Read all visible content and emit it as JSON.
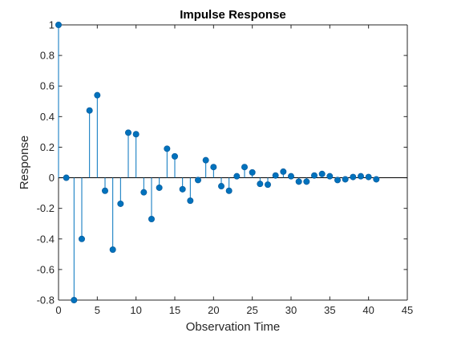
{
  "chart_data": {
    "type": "stem",
    "title": "Impulse Response",
    "xlabel": "Observation Time",
    "ylabel": "Response",
    "xlim": [
      0,
      45
    ],
    "ylim": [
      -0.8,
      1
    ],
    "xticks": [
      "0",
      "5",
      "10",
      "15",
      "20",
      "25",
      "30",
      "35",
      "40",
      "45"
    ],
    "yticks": [
      "-0.8",
      "-0.6",
      "-0.4",
      "-0.2",
      "0",
      "0.2",
      "0.4",
      "0.6",
      "0.8",
      "1"
    ],
    "grid": false,
    "baseline": 0,
    "x": [
      0,
      1,
      2,
      3,
      4,
      5,
      6,
      7,
      8,
      9,
      10,
      11,
      12,
      13,
      14,
      15,
      16,
      17,
      18,
      19,
      20,
      21,
      22,
      23,
      24,
      25,
      26,
      27,
      28,
      29,
      30,
      31,
      32,
      33,
      34,
      35,
      36,
      37,
      38,
      39,
      40,
      41
    ],
    "values": [
      1,
      0,
      -0.8,
      -0.4,
      0.44,
      0.54,
      -0.085,
      -0.47,
      -0.17,
      0.295,
      0.285,
      -0.095,
      -0.27,
      -0.065,
      0.19,
      0.14,
      -0.075,
      -0.15,
      -0.015,
      0.115,
      0.07,
      -0.055,
      -0.085,
      0.01,
      0.07,
      0.035,
      -0.04,
      -0.045,
      0.015,
      0.04,
      0.01,
      -0.025,
      -0.025,
      0.015,
      0.025,
      0.01,
      -0.015,
      -0.01,
      0.005,
      0.01,
      0.005,
      -0.01
    ],
    "color": "#0072BD"
  }
}
